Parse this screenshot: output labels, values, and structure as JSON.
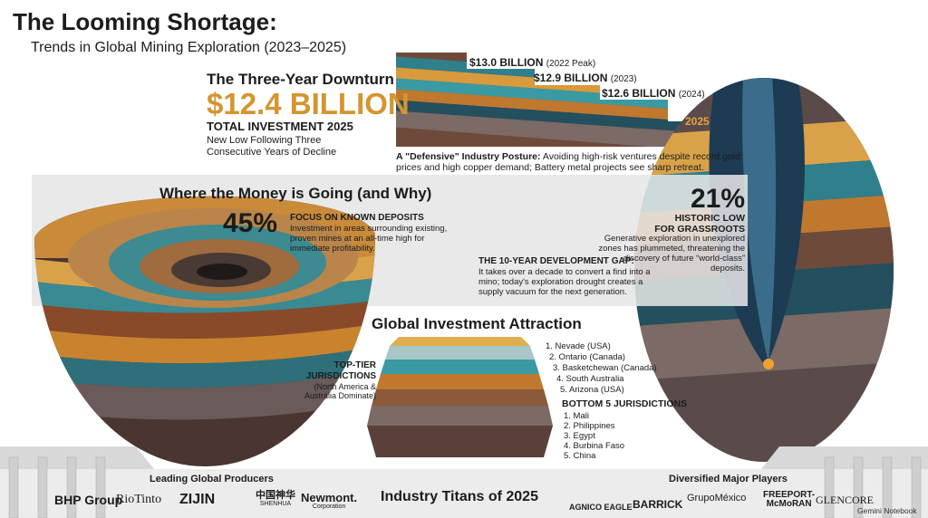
{
  "header": {
    "title": "The Looming Shortage:",
    "subtitle": "Trends in Global Mining Exploration (2023–2025)"
  },
  "downturn": {
    "heading": "The Three-Year Downturn",
    "amount": "$12.4 BILLION",
    "amount_label": "TOTAL INVESTMENT 2025",
    "note": "New Low Following Three Consecutive Years of Decline"
  },
  "timeline": [
    {
      "amount": "$13.0 BILLION",
      "period": "(2022 Peak)"
    },
    {
      "amount": "$12.9 BILLION",
      "period": "(2023)"
    },
    {
      "amount": "$12.6 BILLION",
      "period": "(2024)"
    },
    {
      "period": "2025"
    }
  ],
  "posture": {
    "lead": "A \"Defensive\" Industry Posture:",
    "text": "Avoiding high-risk ventures despite record gold prices and high copper demand; Battery metal projects see sharp retreat."
  },
  "money": {
    "heading": "Where the Money is Going (and Why)",
    "known": {
      "percent": "45%",
      "label": "FOCUS ON KNOWN DEPOSITS",
      "text": "Investment in areas surrounding existing, proven mines at an all-time high for immediate profitability."
    },
    "grassroots": {
      "percent": "21%",
      "label": "HISTORIC LOW FOR GRASSROOTS",
      "text": "Generative exploration in unexplored zones has plummeted, threatening the discovery of future “world-class” deposits."
    },
    "gap": {
      "label": "THE 10-YEAR DEVELOPMENT GAP:",
      "text": "It takes over a decade to convert a find into a mino; today's exploration drought creates a supply vacuum for the next generation."
    }
  },
  "jurisdictions": {
    "heading": "Global Investment Attraction",
    "top_label": "TOP-TIER JURISDICTIONS",
    "top_note": "(North America & Australia Dominate)",
    "top": [
      "1. Nevade (USA)",
      "2. Ontario (Canada)",
      "3. Basketchewan (Canada)",
      "4. South Australia",
      "5. Arizona (USA)"
    ],
    "bottom_label": "BOTTOM 5 JURISDICTIONS",
    "bottom": [
      "1. Mali",
      "2. Philippines",
      "3. Egypt",
      "4. Burbina Faso",
      "5. China"
    ]
  },
  "footer": {
    "left_heading": "Leading Global Producers",
    "left": [
      {
        "name": "BHP Group"
      },
      {
        "name": "RioTinto"
      },
      {
        "name": "ZIJIN"
      },
      {
        "name": "中国神华",
        "sub": "SHENHUA"
      },
      {
        "name": "Newmont.",
        "sub": "Corporation"
      }
    ],
    "center": "Industry Titans of 2025",
    "right_heading": "Diversified Major Players",
    "right": [
      {
        "name": "AGNICO EAGLE"
      },
      {
        "name": "BARRICK"
      },
      {
        "name": "GrupoMéxico"
      },
      {
        "name": "FREEPORT-",
        "sub": "McMoRAN"
      },
      {
        "name": "GLENCORE"
      }
    ],
    "badge": "Gemini Notebook"
  }
}
